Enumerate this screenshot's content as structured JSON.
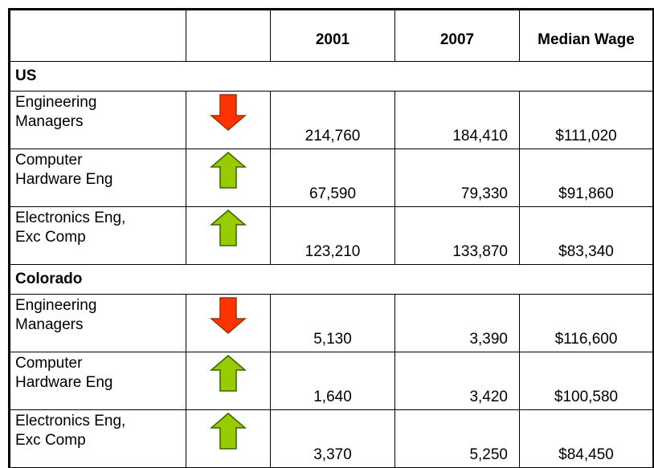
{
  "table": {
    "columns": [
      "2001",
      "2007",
      "Median Wage"
    ],
    "sections": [
      {
        "name": "US",
        "rows": [
          {
            "label": "Engineering\nManagers",
            "trend": "down",
            "values": [
              "214,760",
              "184,410",
              "$111,020"
            ]
          },
          {
            "label": "Computer\nHardware Eng",
            "trend": "up",
            "values": [
              "67,590",
              "79,330",
              "$91,860"
            ]
          },
          {
            "label": "Electronics Eng,\nExc Comp",
            "trend": "up",
            "values": [
              "123,210",
              "133,870",
              "$83,340"
            ]
          }
        ]
      },
      {
        "name": "Colorado",
        "rows": [
          {
            "label": "Engineering\nManagers",
            "trend": "down",
            "values": [
              "5,130",
              "3,390",
              "$116,600"
            ]
          },
          {
            "label": "Computer\nHardware Eng",
            "trend": "up",
            "values": [
              "1,640",
              "3,420",
              "$100,580"
            ]
          },
          {
            "label": "Electronics Eng,\nExc Comp",
            "trend": "up",
            "values": [
              "3,370",
              "5,250",
              "$84,450"
            ]
          }
        ]
      }
    ]
  }
}
